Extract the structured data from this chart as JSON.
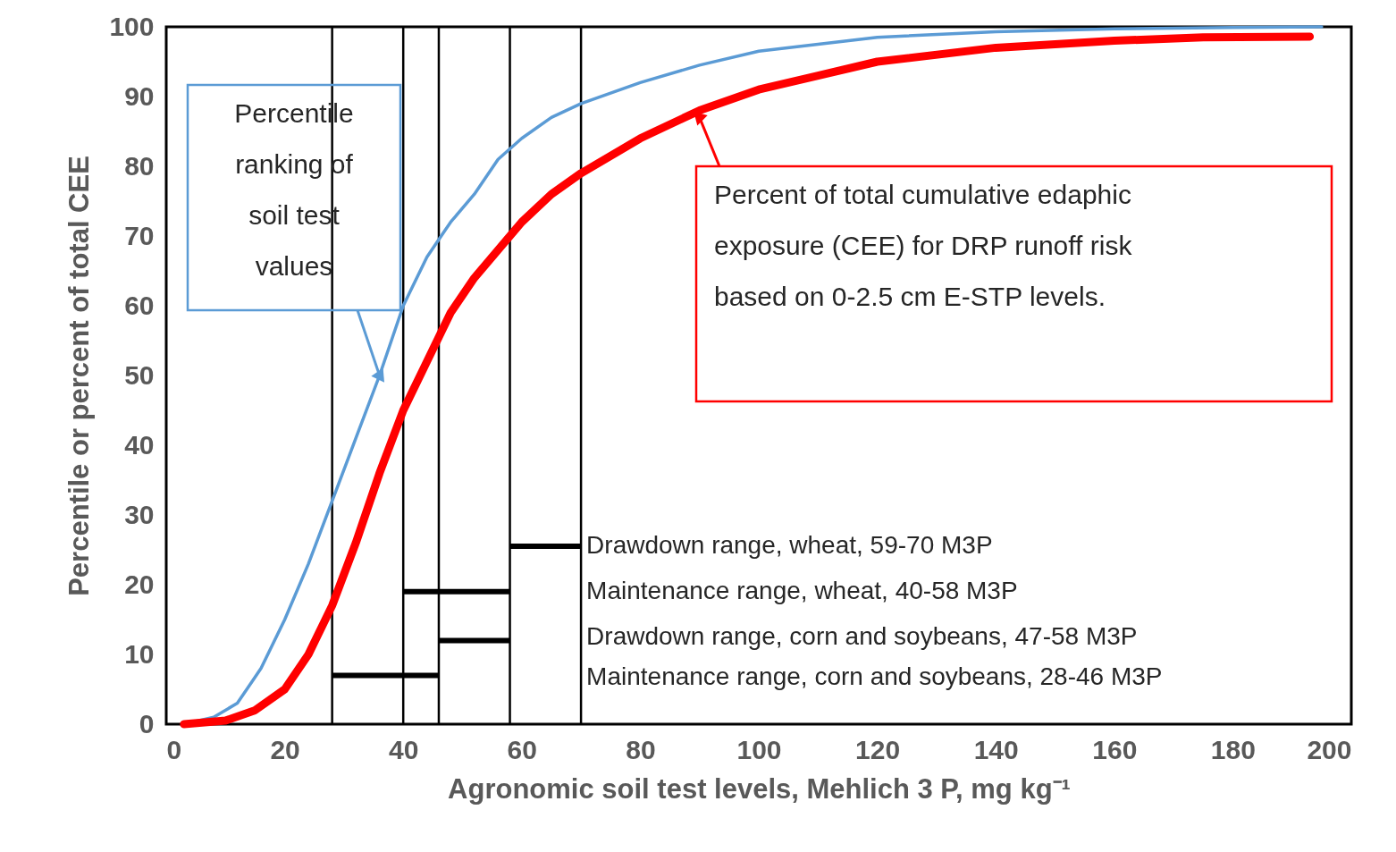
{
  "chart_data": {
    "type": "line",
    "xlabel": "Agronomic soil test levels, Mehlich 3 P, mg kg⁻¹",
    "ylabel": "Percentile or percent of total CEE",
    "xlim": [
      0,
      200
    ],
    "xticks": [
      0,
      20,
      40,
      60,
      80,
      100,
      120,
      140,
      160,
      180,
      200
    ],
    "ylim": [
      0,
      100
    ],
    "yticks": [
      0,
      10,
      20,
      30,
      40,
      50,
      60,
      70,
      80,
      90,
      100
    ],
    "grid": false,
    "series": [
      {
        "color": "#5b9bd5",
        "x": [
          3,
          8,
          12,
          16,
          20,
          24,
          28,
          32,
          36,
          40,
          44,
          48,
          52,
          56,
          60,
          65,
          70,
          80,
          90,
          100,
          110,
          120,
          140,
          160,
          180,
          195
        ],
        "values": [
          0,
          1,
          3,
          8,
          15,
          23,
          32,
          41,
          50,
          60,
          67,
          72,
          76,
          81,
          84,
          87,
          89,
          92,
          94.5,
          96.5,
          97.5,
          98.5,
          99.3,
          99.7,
          99.9,
          100
        ]
      },
      {
        "color": "#ff0000",
        "x": [
          3,
          10,
          15,
          20,
          24,
          28,
          32,
          36,
          40,
          44,
          48,
          52,
          56,
          60,
          65,
          70,
          80,
          90,
          100,
          110,
          120,
          140,
          160,
          175,
          193
        ],
        "values": [
          0,
          0.5,
          2,
          5,
          10,
          17,
          26,
          36,
          45,
          52,
          59,
          64,
          68,
          72,
          76,
          79,
          84,
          88,
          91,
          93,
          95,
          97,
          98,
          98.5,
          98.6
        ]
      },
      {
        "type": "line",
        "color": "#000000",
        "x": [
          28,
          46
        ],
        "values": [
          7,
          7
        ]
      },
      {
        "type": "line",
        "color": "#000000",
        "x": [
          46,
          58
        ],
        "values": [
          12,
          12
        ]
      },
      {
        "type": "line",
        "color": "#000000",
        "x": [
          40,
          58
        ],
        "values": [
          19,
          19
        ]
      },
      {
        "type": "line",
        "color": "#000000",
        "x": [
          58,
          70
        ],
        "values": [
          25.5,
          25.5
        ]
      }
    ],
    "ref_lines": [
      {
        "axis": "x",
        "value": 28,
        "color": "#000000"
      },
      {
        "axis": "x",
        "value": 40,
        "color": "#000000"
      },
      {
        "axis": "x",
        "value": 46,
        "color": "#000000"
      },
      {
        "axis": "x",
        "value": 58,
        "color": "#000000"
      },
      {
        "axis": "x",
        "value": 70,
        "color": "#000000"
      }
    ],
    "annotations": [
      {
        "text": "Percentile ranking of soil test values",
        "x": 36,
        "y": 50
      },
      {
        "text": "Percent of total cumulative edaphic exposure (CEE) for DRP runoff risk based on 0-2.5 cm E-STP levels.",
        "x": 90,
        "y": 87
      },
      "Drawdown range, wheat, 59-70 M3P",
      "Maintenance range, wheat, 40-58  M3P",
      "Drawdown range, corn and soybeans, 47-58 M3P",
      "Maintenance range, corn and soybeans, 28-46 M3P"
    ]
  }
}
